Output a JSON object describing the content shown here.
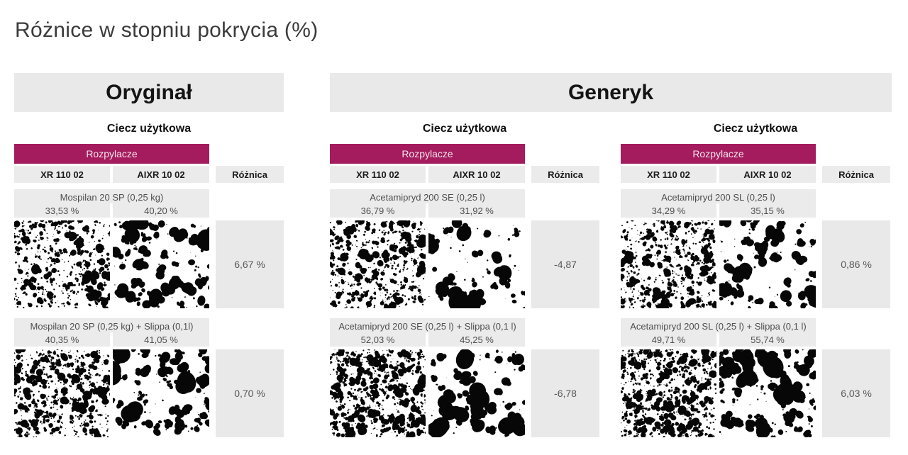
{
  "page": {
    "title": "Różnice w stopniu pokrycia (%)"
  },
  "sections": [
    {
      "label": "Oryginał"
    },
    {
      "label": "Generyk"
    }
  ],
  "common": {
    "subheader": "Ciecz użytkowa",
    "sprayers_label": "Rozpylacze",
    "col1": "XR 110 02",
    "col2": "AIXR 10 02",
    "diff": "Różnica"
  },
  "tables": [
    {
      "section": "Oryginał",
      "rows": [
        {
          "product": "Mospilan 20 SP (0,25 kg)",
          "v1": "33,53 %",
          "v2": "40,20 %",
          "diff": "6,67 %"
        },
        {
          "product": "Mospilan 20 SP (0,25 kg) + Slippa (0,1l)",
          "v1": "40,35 %",
          "v2": "41,05 %",
          "diff": "0,70 %"
        }
      ]
    },
    {
      "section": "Generyk",
      "rows": [
        {
          "product": "Acetamipryd 200 SE (0,25 l)",
          "v1": "36,79 %",
          "v2": "31,92 %",
          "diff": "-4,87"
        },
        {
          "product": "Acetamipryd 200 SE (0,25 l) + Slippa (0,1 l)",
          "v1": "52,03 %",
          "v2": "45,25 %",
          "diff": "-6,78"
        }
      ]
    },
    {
      "section": "Generyk",
      "rows": [
        {
          "product": "Acetamipryd 200 SL (0,25 l)",
          "v1": "34,29 %",
          "v2": "35,15 %",
          "diff": "0,86 %"
        },
        {
          "product": "Acetamipryd 200 SL (0,25 l) + Slippa (0,1 l)",
          "v1": "49,71 %",
          "v2": "55,74 %",
          "diff": "6,03 %"
        }
      ]
    }
  ],
  "colors": {
    "accent_magenta": "#a51c5e",
    "cell_gray": "#ebebeb",
    "section_gray": "#e9e9e9",
    "text_dark": "#141414",
    "text_muted": "#4e4e4e"
  },
  "chart_data": {
    "type": "table",
    "title": "Różnice w stopniu pokrycia (%)",
    "unit": "%",
    "columns": [
      "XR 110 02",
      "AIXR 10 02",
      "Różnica"
    ],
    "groups": [
      {
        "group": "Oryginał",
        "rows": [
          {
            "product": "Mospilan 20 SP (0,25 kg)",
            "xr_110_02": 33.53,
            "aixr_10_02": 40.2,
            "roznica": 6.67
          },
          {
            "product": "Mospilan 20 SP (0,25 kg) + Slippa (0,1l)",
            "xr_110_02": 40.35,
            "aixr_10_02": 41.05,
            "roznica": 0.7
          }
        ]
      },
      {
        "group": "Generyk",
        "rows": [
          {
            "product": "Acetamipryd 200 SE (0,25 l)",
            "xr_110_02": 36.79,
            "aixr_10_02": 31.92,
            "roznica": -4.87
          },
          {
            "product": "Acetamipryd 200 SE (0,25 l) + Slippa (0,1 l)",
            "xr_110_02": 52.03,
            "aixr_10_02": 45.25,
            "roznica": -6.78
          },
          {
            "product": "Acetamipryd 200 SL (0,25 l)",
            "xr_110_02": 34.29,
            "aixr_10_02": 35.15,
            "roznica": 0.86
          },
          {
            "product": "Acetamipryd 200 SL (0,25 l) + Slippa (0,1 l)",
            "xr_110_02": 49.71,
            "aixr_10_02": 55.74,
            "roznica": 6.03
          }
        ]
      }
    ]
  }
}
